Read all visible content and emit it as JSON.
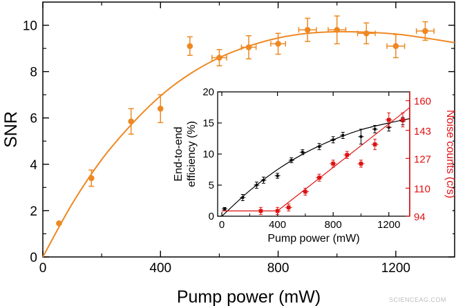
{
  "chart_data": [
    {
      "type": "scatter",
      "xlabel": "Pump power (mW)",
      "ylabel": "SNR",
      "xlim": [
        0,
        1400
      ],
      "ylim": [
        0,
        11
      ],
      "xticks": [
        0,
        400,
        800,
        1200
      ],
      "yticks": [
        0,
        2,
        4,
        6,
        8,
        10
      ],
      "colors": {
        "series": "#ee8822",
        "axes": "#000000"
      },
      "series": [
        {
          "x": [
            55,
            165,
            300,
            400,
            500,
            600,
            700,
            800,
            900,
            1000,
            1100,
            1200,
            1300
          ],
          "y": [
            1.45,
            3.4,
            5.85,
            6.4,
            9.1,
            8.6,
            9.05,
            9.2,
            9.8,
            9.8,
            9.65,
            9.1,
            9.75
          ],
          "yerr": [
            0,
            0.35,
            0.55,
            0.6,
            0.4,
            0.35,
            0.5,
            0.45,
            0.5,
            0.6,
            0.45,
            0.5,
            0.4
          ],
          "xerr": [
            0,
            0,
            0,
            0,
            0,
            25,
            25,
            25,
            30,
            30,
            30,
            30,
            30
          ]
        }
      ],
      "fit": {
        "x": [
          0,
          100,
          200,
          300,
          400,
          500,
          600,
          700,
          800,
          900,
          1000,
          1100,
          1200,
          1300,
          1400
        ],
        "y": [
          0,
          2.3,
          4.2,
          5.7,
          6.95,
          7.9,
          8.6,
          9.1,
          9.45,
          9.65,
          9.72,
          9.7,
          9.62,
          9.45,
          9.25
        ]
      }
    },
    {
      "type": "scatter",
      "xlabel": "Pump power (mW)",
      "ylabel_left": "End-to-end efficiency (%)",
      "ylabel_right": "Noise counts (c/s)",
      "xlim": [
        -30,
        1350
      ],
      "ylim_left": [
        0,
        20
      ],
      "ylim_right": [
        94,
        165
      ],
      "xticks": [
        0,
        400,
        800,
        1200
      ],
      "yticks_left": [
        0,
        5,
        10,
        15,
        20
      ],
      "yticks_right": [
        94,
        110,
        127,
        143,
        160
      ],
      "colors": {
        "efficiency": "#000000",
        "noise": "#dd1111"
      },
      "series": [
        {
          "x": [
            20,
            150,
            250,
            300,
            400,
            500,
            580,
            700,
            800,
            870,
            1000,
            1100,
            1200,
            1300
          ],
          "y": [
            1.2,
            3.0,
            5.0,
            5.8,
            6.5,
            9.0,
            10.3,
            11.2,
            12.3,
            13.0,
            12.8,
            14.0,
            14.3,
            15.3
          ],
          "yerr": [
            0.2,
            0.5,
            0.5,
            0.5,
            0.4,
            0.4,
            0.4,
            0.5,
            0.5,
            0.5,
            1.2,
            0.6,
            0.6,
            0.6
          ]
        },
        {
          "x": [
            280,
            400,
            480,
            600,
            700,
            800,
            900,
            1000,
            1100,
            1200,
            1300
          ],
          "y": [
            97,
            97,
            99,
            108,
            116,
            124,
            129,
            124,
            135,
            149,
            149
          ],
          "yerr": [
            2,
            2,
            2,
            2,
            2,
            2,
            2,
            2,
            3,
            4,
            4
          ]
        }
      ],
      "fits": [
        {
          "x": [
            0,
            200,
            400,
            600,
            800,
            1000,
            1200,
            1350
          ],
          "y": [
            0,
            4.1,
            7.5,
            10.2,
            12.3,
            13.9,
            15.0,
            15.7
          ]
        },
        {
          "x": [
            0,
            400,
            1350
          ],
          "y": [
            97,
            97,
            156
          ]
        }
      ]
    }
  ],
  "watermark": "SCIENCEAG.COM"
}
